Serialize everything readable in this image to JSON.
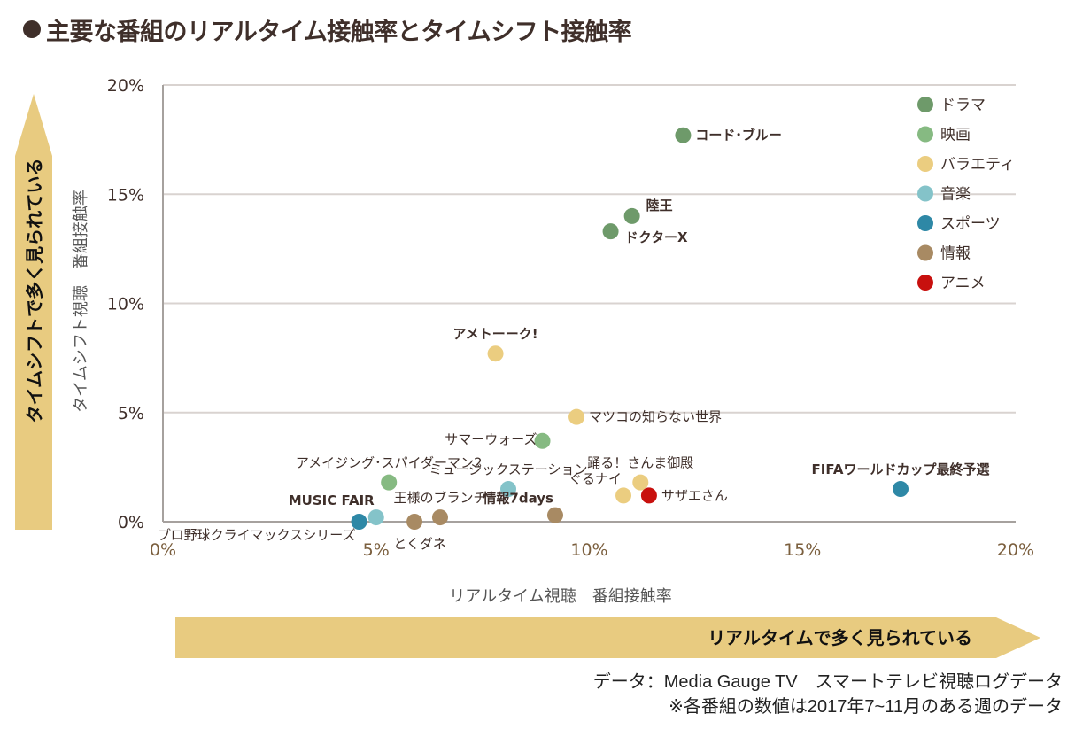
{
  "title": "主要な番組のリアルタイム接触率とタイムシフト接触率",
  "chart_data": {
    "type": "scatter",
    "title": "主要な番組のリアルタイム接触率とタイムシフト接触率",
    "xlabel": "リアルタイム視聴　番組接触率",
    "ylabel": "タイムシフト視聴　番組接触率",
    "xlim": [
      0,
      20
    ],
    "ylim": [
      0,
      20
    ],
    "x_ticks": [
      "0%",
      "5%",
      "10%",
      "15%",
      "20%"
    ],
    "y_ticks": [
      "0%",
      "5%",
      "10%",
      "15%",
      "20%"
    ],
    "grid": "horizontal",
    "legend_position": "top-right",
    "categories": [
      {
        "key": "drama",
        "label": "ドラマ",
        "color": "#6e9a6a"
      },
      {
        "key": "movie",
        "label": "映画",
        "color": "#86ba82"
      },
      {
        "key": "variety",
        "label": "バラエティ",
        "color": "#ebcd80"
      },
      {
        "key": "music",
        "label": "音楽",
        "color": "#84c3c9"
      },
      {
        "key": "sports",
        "label": "スポーツ",
        "color": "#2e88a6"
      },
      {
        "key": "info",
        "label": "情報",
        "color": "#a88a63"
      },
      {
        "key": "anime",
        "label": "アニメ",
        "color": "#c8100e"
      }
    ],
    "points": [
      {
        "label": "コード･ブルー",
        "category": "drama",
        "x": 12.2,
        "y": 17.7,
        "label_pos": "right",
        "bold": true
      },
      {
        "label": "陸王",
        "category": "drama",
        "x": 11.0,
        "y": 14.0,
        "label_pos": "upright",
        "bold": true
      },
      {
        "label": "ドクターX",
        "category": "drama",
        "x": 10.5,
        "y": 13.3,
        "label_pos": "downright",
        "bold": true
      },
      {
        "label": "アメトーーク!",
        "category": "variety",
        "x": 7.8,
        "y": 7.7,
        "label_pos": "above",
        "bold": true
      },
      {
        "label": "マツコの知らない世界",
        "category": "variety",
        "x": 9.7,
        "y": 4.8,
        "label_pos": "right",
        "bold": false
      },
      {
        "label": "サマーウォーズ",
        "category": "movie",
        "x": 8.9,
        "y": 3.7,
        "label_pos": "left",
        "bold": false
      },
      {
        "label": "アメイジング･スパイダーマン2",
        "category": "movie",
        "x": 5.3,
        "y": 1.8,
        "label_pos": "above",
        "bold": false
      },
      {
        "label": "ミュージックステーション",
        "category": "music",
        "x": 8.1,
        "y": 1.5,
        "label_pos": "above",
        "bold": false
      },
      {
        "label": "踊る！さんま御殿",
        "category": "variety",
        "x": 11.2,
        "y": 1.8,
        "label_pos": "above",
        "bold": false
      },
      {
        "label": "ぐるナイ",
        "category": "variety",
        "x": 10.8,
        "y": 1.2,
        "label_pos": "upleft",
        "bold": false
      },
      {
        "label": "サザエさん",
        "category": "anime",
        "x": 11.4,
        "y": 1.2,
        "label_pos": "right",
        "bold": false
      },
      {
        "label": "FIFAワールドカップ最終予選",
        "category": "sports",
        "x": 17.3,
        "y": 1.5,
        "label_pos": "above",
        "bold": true
      },
      {
        "label": "情報7days",
        "category": "info",
        "x": 9.2,
        "y": 0.3,
        "label_pos": "upleft",
        "bold": true
      },
      {
        "label": "プロ野球クライマックスシリーズ",
        "category": "sports",
        "x": 4.6,
        "y": 0.0,
        "label_pos": "belowleft",
        "bold": false
      },
      {
        "label": "MUSIC FAIR",
        "category": "music",
        "x": 5.0,
        "y": 0.2,
        "label_pos": "upleft",
        "bold": true
      },
      {
        "label": "とくダネ",
        "category": "info",
        "x": 5.9,
        "y": 0.0,
        "label_pos": "below",
        "bold": false
      },
      {
        "label": "王様のブランチ",
        "category": "info",
        "x": 6.5,
        "y": 0.2,
        "label_pos": "above",
        "bold": false
      }
    ]
  },
  "arrows": {
    "vertical": "タイムシフトで多く見られている",
    "horizontal": "リアルタイムで多く見られている",
    "color": "#e8cb80"
  },
  "footer": {
    "source": "データ：Media Gauge TV　スマートテレビ視聴ログデータ",
    "note": "※各番組の数値は2017年7~11月のある週のデータ"
  }
}
